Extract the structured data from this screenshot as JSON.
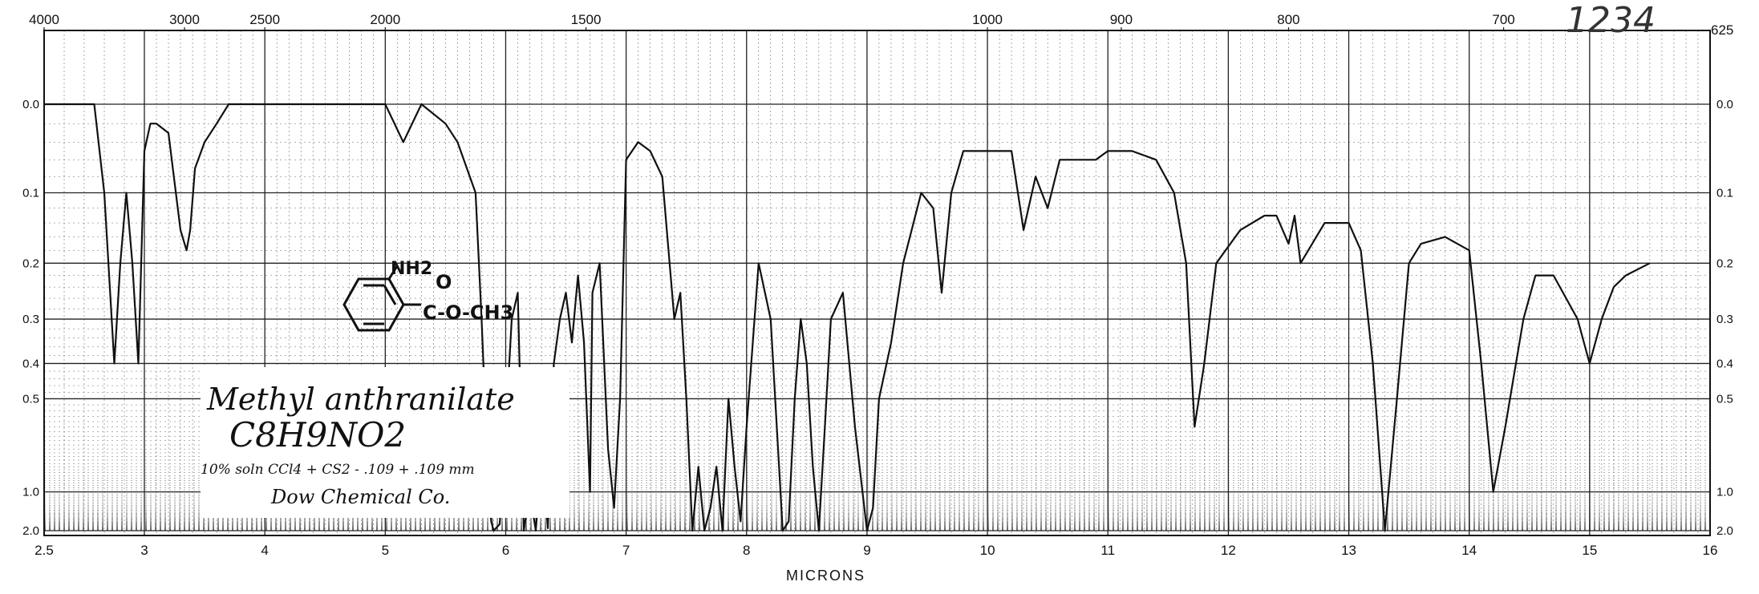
{
  "chart_data": {
    "type": "line",
    "title": "",
    "xlabel": "MICRONS",
    "ylabel": "",
    "x_unit": "microns",
    "xlim": [
      2.5,
      16
    ],
    "ylim": [
      0.0,
      2.0
    ],
    "y_scale": "absorbance (nonlinear)",
    "grid": true,
    "bottom_ticks": [
      "2.5",
      "3",
      "4",
      "5",
      "6",
      "7",
      "8",
      "9",
      "10",
      "11",
      "12",
      "13",
      "14",
      "15",
      "16"
    ],
    "bottom_tick_values": [
      2.5,
      3,
      4,
      5,
      6,
      7,
      8,
      9,
      10,
      11,
      12,
      13,
      14,
      15,
      16
    ],
    "top_ticks": [
      "4000",
      "3000",
      "2500",
      "2000",
      "1500",
      "1000",
      "900",
      "800",
      "700"
    ],
    "top_tick_values": [
      4000,
      3000,
      2500,
      2000,
      1500,
      1000,
      900,
      800,
      700
    ],
    "top_right_tick": "625",
    "y_ticks": [
      "0.0",
      "0.1",
      "0.2",
      "0.3",
      "0.4",
      "0.5",
      "1.0",
      "2.0"
    ],
    "y_tick_values": [
      0.0,
      0.1,
      0.2,
      0.3,
      0.4,
      0.5,
      1.0,
      2.0
    ],
    "series": [
      {
        "x": [
          2.5,
          2.75,
          2.8,
          2.85,
          2.88,
          2.91,
          2.94,
          2.97,
          3.0,
          3.05,
          3.1,
          3.2,
          3.3,
          3.35,
          3.38,
          3.42,
          3.5,
          3.6,
          3.7,
          3.8,
          4.0,
          4.3,
          4.7,
          5.0,
          5.15,
          5.3,
          5.5,
          5.6,
          5.75,
          5.8,
          5.85,
          5.88,
          5.9,
          5.95,
          6.0,
          6.05,
          6.1,
          6.15,
          6.2,
          6.25,
          6.3,
          6.35,
          6.4,
          6.45,
          6.5,
          6.55,
          6.6,
          6.65,
          6.7,
          6.72,
          6.78,
          6.85,
          6.9,
          6.95,
          7.0,
          7.1,
          7.2,
          7.3,
          7.4,
          7.45,
          7.5,
          7.55,
          7.6,
          7.65,
          7.7,
          7.75,
          7.8,
          7.85,
          7.9,
          7.95,
          8.0,
          8.1,
          8.2,
          8.3,
          8.35,
          8.4,
          8.45,
          8.5,
          8.55,
          8.6,
          8.65,
          8.7,
          8.8,
          8.9,
          9.0,
          9.05,
          9.1,
          9.2,
          9.3,
          9.45,
          9.55,
          9.62,
          9.7,
          9.8,
          9.9,
          10.0,
          10.2,
          10.3,
          10.4,
          10.5,
          10.6,
          10.7,
          10.9,
          11.0,
          11.2,
          11.4,
          11.55,
          11.65,
          11.72,
          11.8,
          11.9,
          12.1,
          12.3,
          12.4,
          12.5,
          12.55,
          12.6,
          12.8,
          13.0,
          13.1,
          13.2,
          13.3,
          13.4,
          13.5,
          13.6,
          13.8,
          14.0,
          14.1,
          14.2,
          14.3,
          14.45,
          14.55,
          14.7,
          14.9,
          15.0,
          15.1,
          15.2,
          15.3,
          15.5
        ],
        "y": [
          0.0,
          0.0,
          0.1,
          0.4,
          0.2,
          0.1,
          0.2,
          0.4,
          0.05,
          0.02,
          0.02,
          0.03,
          0.15,
          0.18,
          0.15,
          0.07,
          0.04,
          0.02,
          0.0,
          0.0,
          0.0,
          0.0,
          0.0,
          0.0,
          0.04,
          0.0,
          0.02,
          0.04,
          0.1,
          0.3,
          0.8,
          1.5,
          2.0,
          1.6,
          0.6,
          0.3,
          0.25,
          2.0,
          1.0,
          2.0,
          0.7,
          1.8,
          0.4,
          0.3,
          0.25,
          0.35,
          0.22,
          0.35,
          1.0,
          0.25,
          0.2,
          0.7,
          1.2,
          0.5,
          0.06,
          0.04,
          0.05,
          0.08,
          0.3,
          0.25,
          0.5,
          2.0,
          0.8,
          2.0,
          1.2,
          0.8,
          2.0,
          0.5,
          0.8,
          1.5,
          0.6,
          0.2,
          0.3,
          2.0,
          1.5,
          0.5,
          0.3,
          0.4,
          0.8,
          2.0,
          0.6,
          0.3,
          0.25,
          0.6,
          2.0,
          1.2,
          0.5,
          0.35,
          0.2,
          0.1,
          0.12,
          0.25,
          0.1,
          0.05,
          0.05,
          0.05,
          0.05,
          0.15,
          0.08,
          0.12,
          0.06,
          0.06,
          0.06,
          0.05,
          0.05,
          0.06,
          0.1,
          0.2,
          0.6,
          0.4,
          0.2,
          0.15,
          0.13,
          0.13,
          0.17,
          0.13,
          0.2,
          0.14,
          0.14,
          0.18,
          0.4,
          2.0,
          0.5,
          0.2,
          0.17,
          0.16,
          0.18,
          0.4,
          1.0,
          0.6,
          0.3,
          0.22,
          0.22,
          0.3,
          0.4,
          0.3,
          0.24,
          0.22,
          0.2
        ]
      }
    ]
  },
  "annotations": {
    "compound_name": "Methyl anthranilate",
    "formula": "C8H9NO2",
    "sample_note": "10% soln CCl4 + CS2 - .109 + .109 mm",
    "source": "Dow Chemical Co.",
    "spectrum_number": "1234",
    "struct_nh2": "NH2",
    "struct_o": "O",
    "struct_ester": "C-O-CH3"
  }
}
